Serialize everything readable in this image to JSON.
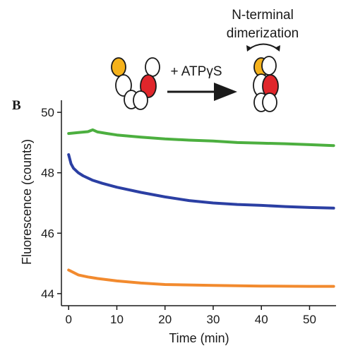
{
  "panel_label": "B",
  "schematic": {
    "top_label_line1": "N-terminal",
    "top_label_line2": "dimerization",
    "arrow_label": "+ ATPγS",
    "colors": {
      "domain_yellow": "#f5b21c",
      "domain_red": "#e0262b",
      "outline": "#1a1a1a"
    }
  },
  "chart_data": {
    "type": "line",
    "xlabel": "Time (min)",
    "ylabel": "Fluorescence (counts)",
    "xlim": [
      -1.5,
      55.5
    ],
    "ylim": [
      43.6,
      50.4
    ],
    "xticks": [
      0,
      10,
      20,
      30,
      40,
      50
    ],
    "yticks": [
      44,
      46,
      48,
      50
    ],
    "grid": false,
    "legend": "none",
    "series": [
      {
        "color": "#4caf3f",
        "x": [
          0,
          2,
          4,
          5,
          6,
          8,
          10,
          15,
          20,
          25,
          30,
          35,
          40,
          45,
          50,
          55
        ],
        "y": [
          49.3,
          49.33,
          49.36,
          49.42,
          49.35,
          49.3,
          49.25,
          49.18,
          49.12,
          49.08,
          49.05,
          49.0,
          48.98,
          48.96,
          48.93,
          48.9
        ]
      },
      {
        "color": "#2b3fa3",
        "x": [
          0,
          0.5,
          1,
          2,
          3,
          5,
          7,
          10,
          15,
          20,
          25,
          30,
          35,
          40,
          45,
          50,
          55
        ],
        "y": [
          48.6,
          48.3,
          48.15,
          48.0,
          47.9,
          47.75,
          47.65,
          47.52,
          47.35,
          47.2,
          47.08,
          47.0,
          46.95,
          46.92,
          46.88,
          46.85,
          46.83
        ]
      },
      {
        "color": "#f28a2e",
        "x": [
          0,
          1,
          2,
          4,
          6,
          10,
          15,
          20,
          30,
          40,
          50,
          55
        ],
        "y": [
          44.78,
          44.7,
          44.62,
          44.55,
          44.5,
          44.42,
          44.35,
          44.3,
          44.27,
          44.25,
          44.24,
          44.24
        ]
      }
    ]
  }
}
